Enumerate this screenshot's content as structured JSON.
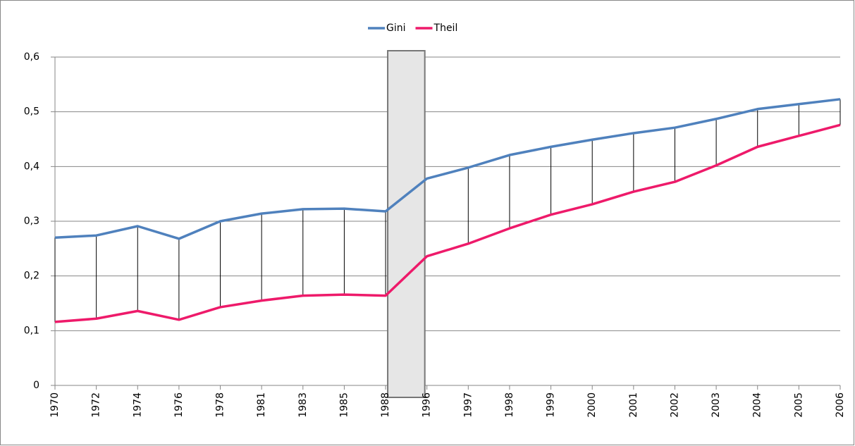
{
  "chart_data": {
    "type": "line",
    "categories": [
      "1970",
      "1972",
      "1974",
      "1976",
      "1978",
      "1981",
      "1983",
      "1985",
      "1988",
      "1996",
      "1997",
      "1998",
      "1999",
      "2000",
      "2001",
      "2002",
      "2003",
      "2004",
      "2005",
      "2006"
    ],
    "series": [
      {
        "name": "Gini",
        "color": "#4f81bd",
        "values": [
          0.27,
          0.274,
          0.291,
          0.268,
          0.3,
          0.314,
          0.322,
          0.323,
          0.318,
          0.378,
          0.398,
          0.421,
          0.436,
          0.449,
          0.461,
          0.471,
          0.487,
          0.505,
          0.514,
          0.523
        ]
      },
      {
        "name": "Theil",
        "color": "#ee1a6a",
        "values": [
          0.116,
          0.122,
          0.136,
          0.12,
          0.143,
          0.155,
          0.164,
          0.166,
          0.164,
          0.236,
          0.259,
          0.287,
          0.312,
          0.331,
          0.354,
          0.372,
          0.402,
          0.436,
          0.456,
          0.476
        ]
      }
    ],
    "ylim": [
      0,
      0.6
    ],
    "yticks": [
      0,
      {
        "value": 0.1,
        "label": "0,1"
      },
      {
        "value": 0.2,
        "label": "0,2"
      },
      {
        "value": 0.3,
        "label": "0,3"
      },
      {
        "value": 0.4,
        "label": "0,4"
      },
      {
        "value": 0.5,
        "label": "0,5"
      },
      {
        "value": 0.6,
        "label": "0,6"
      }
    ],
    "grid": true,
    "legend": "top"
  }
}
